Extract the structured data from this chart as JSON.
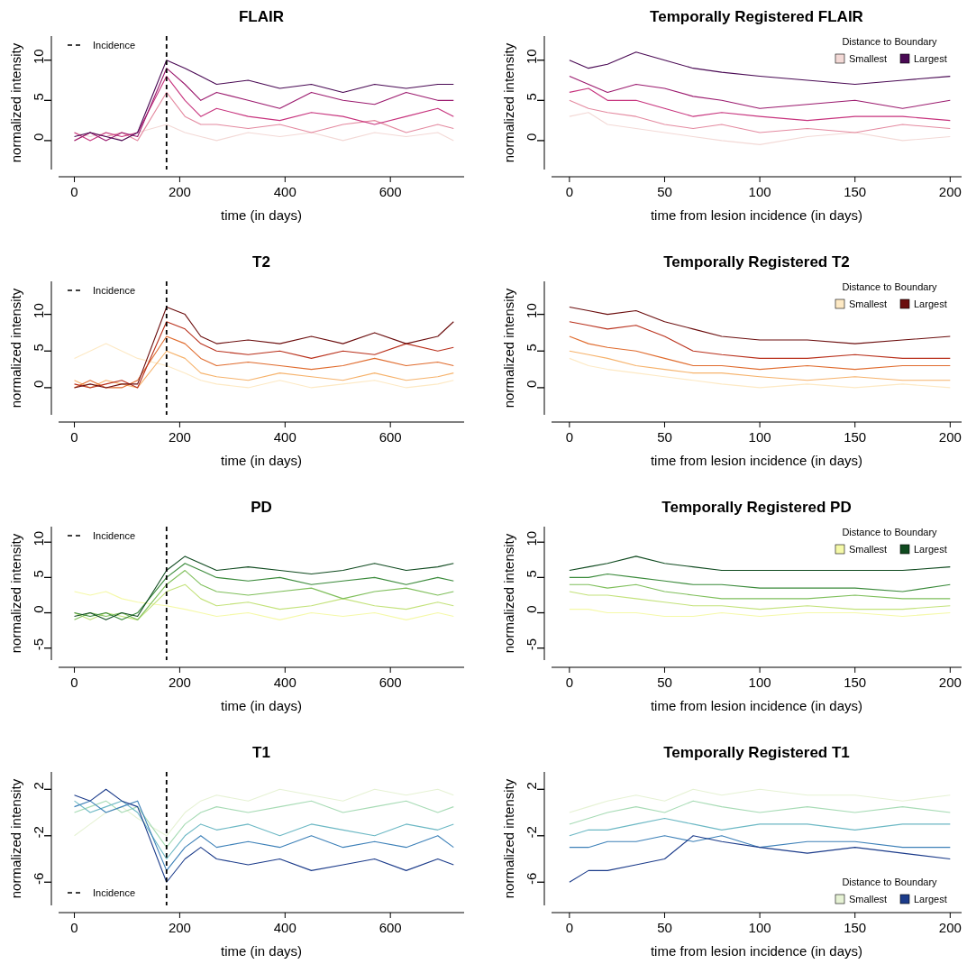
{
  "chart_data": [
    {
      "type": "line",
      "title": "FLAIR",
      "xlabel": "time (in days)",
      "ylabel": "normalized intensity",
      "x": [
        0,
        30,
        60,
        90,
        120,
        175,
        210,
        240,
        270,
        330,
        390,
        450,
        510,
        570,
        630,
        690,
        720
      ],
      "xlim": [
        -30,
        740
      ],
      "xticks": [
        0,
        200,
        400,
        600
      ],
      "ylim": [
        -3.6,
        13
      ],
      "yticks": [
        0,
        5,
        10
      ],
      "legend": "top left",
      "ref_lines": [
        {
          "axis": "x",
          "value": 175,
          "label": "Incidence",
          "line_style": "dashed",
          "color": "#000000"
        }
      ],
      "series": [
        {
          "color": "#f3d9d6",
          "values": [
            1,
            0.5,
            1,
            0,
            1,
            2,
            1,
            0.5,
            0,
            1,
            0.5,
            1,
            0,
            1,
            0.5,
            1,
            0
          ]
        },
        {
          "color": "#e48aa0",
          "values": [
            0,
            1,
            0.5,
            1,
            0,
            6,
            3,
            2,
            2,
            1.5,
            2,
            1,
            2,
            2.5,
            1,
            2,
            1.5
          ]
        },
        {
          "color": "#c7337d",
          "values": [
            1,
            0,
            1,
            0.5,
            1,
            8,
            5,
            3,
            4,
            3,
            2.5,
            3.5,
            3,
            2,
            3,
            4,
            3
          ]
        },
        {
          "color": "#9b1a6e",
          "values": [
            0,
            1,
            0,
            1,
            0.5,
            9,
            7,
            5,
            6,
            5,
            4,
            6,
            5,
            4.5,
            6,
            5,
            5
          ]
        },
        {
          "color": "#4a0a54",
          "values": [
            0.5,
            1,
            0.5,
            0,
            1,
            10,
            9,
            8,
            7,
            7.5,
            6.5,
            7,
            6,
            7,
            6.5,
            7,
            7
          ]
        }
      ]
    },
    {
      "type": "line",
      "title": "Temporally Registered FLAIR",
      "xlabel": "time from lesion incidence (in days)",
      "ylabel": "normalized intensity",
      "x": [
        0,
        10,
        20,
        35,
        50,
        65,
        80,
        100,
        125,
        150,
        175,
        200
      ],
      "xlim": [
        -9.4,
        206
      ],
      "xticks": [
        0,
        50,
        100,
        150,
        200
      ],
      "ylim": [
        -3.6,
        13
      ],
      "yticks": [
        0,
        5,
        10
      ],
      "legend": "top right",
      "legend_title": "Distance to Boundary",
      "series": [
        {
          "name": "Smallest",
          "color": "#f3d9d6",
          "values": [
            3,
            3.5,
            2,
            1.5,
            1,
            0.5,
            0,
            -0.5,
            0.5,
            1,
            0,
            0.5
          ]
        },
        {
          "color": "#e48aa0",
          "values": [
            5,
            4,
            3.5,
            3,
            2,
            1.5,
            2,
            1,
            1.5,
            1,
            2,
            1.5
          ]
        },
        {
          "color": "#c7337d",
          "values": [
            6,
            6.5,
            5,
            5,
            4,
            3,
            3.5,
            3,
            2.5,
            3,
            3,
            2.5
          ]
        },
        {
          "color": "#9b1a6e",
          "values": [
            8,
            7,
            6,
            7,
            6.5,
            5.5,
            5,
            4,
            4.5,
            5,
            4,
            5
          ]
        },
        {
          "name": "Largest",
          "color": "#4a0a54",
          "values": [
            10,
            9,
            9.5,
            11,
            10,
            9,
            8.5,
            8,
            7.5,
            7,
            7.5,
            8
          ]
        }
      ]
    },
    {
      "type": "line",
      "title": "T2",
      "xlabel": "time (in days)",
      "ylabel": "normalized intensity",
      "x": [
        0,
        30,
        60,
        90,
        120,
        175,
        210,
        240,
        270,
        330,
        390,
        450,
        510,
        570,
        630,
        690,
        720
      ],
      "xlim": [
        -30,
        740
      ],
      "xticks": [
        0,
        200,
        400,
        600
      ],
      "ylim": [
        -3.7,
        14.5
      ],
      "yticks": [
        0,
        5,
        10
      ],
      "legend": "top left",
      "ref_lines": [
        {
          "axis": "x",
          "value": 175,
          "label": "Incidence",
          "line_style": "dashed",
          "color": "#000000"
        }
      ],
      "series": [
        {
          "color": "#fde9c4",
          "values": [
            4,
            5,
            6,
            5,
            4,
            3,
            2,
            1,
            0.5,
            0,
            1,
            0,
            0.5,
            1,
            0,
            0.5,
            1
          ]
        },
        {
          "color": "#f6b26b",
          "values": [
            1,
            0,
            1,
            0.5,
            0,
            5,
            4,
            2,
            1.5,
            1,
            2,
            1.5,
            1,
            2,
            1,
            1.5,
            2
          ]
        },
        {
          "color": "#e06b2d",
          "values": [
            0,
            1,
            0,
            0,
            1,
            7,
            6,
            4,
            3,
            3.5,
            3,
            2.5,
            3,
            4,
            3,
            3.5,
            3
          ]
        },
        {
          "color": "#b9301b",
          "values": [
            0.5,
            0,
            0.5,
            1,
            0,
            9,
            8,
            6,
            5,
            4.5,
            5,
            4,
            5,
            4.5,
            6,
            5,
            5.5
          ]
        },
        {
          "color": "#6b0d0d",
          "values": [
            0,
            0.5,
            0,
            0.5,
            0.5,
            11,
            10,
            7,
            6,
            6.5,
            6,
            7,
            6,
            7.5,
            6,
            7,
            9
          ]
        }
      ]
    },
    {
      "type": "line",
      "title": "Temporally Registered T2",
      "xlabel": "time from lesion incidence (in days)",
      "ylabel": "normalized intensity",
      "x": [
        0,
        10,
        20,
        35,
        50,
        65,
        80,
        100,
        125,
        150,
        175,
        200
      ],
      "xlim": [
        -9.4,
        206
      ],
      "xticks": [
        0,
        50,
        100,
        150,
        200
      ],
      "ylim": [
        -3.7,
        14.5
      ],
      "yticks": [
        0,
        5,
        10
      ],
      "legend": "top right",
      "legend_title": "Distance to Boundary",
      "series": [
        {
          "name": "Smallest",
          "color": "#fde9c4",
          "values": [
            4,
            3,
            2.5,
            2,
            1.5,
            1,
            0.5,
            0,
            0.5,
            0,
            0.5,
            0
          ]
        },
        {
          "color": "#f6b26b",
          "values": [
            5,
            4.5,
            4,
            3,
            2.5,
            2,
            2,
            1.5,
            1,
            1.5,
            1,
            1
          ]
        },
        {
          "color": "#e06b2d",
          "values": [
            7,
            6,
            5.5,
            5,
            4,
            3,
            3,
            2.5,
            3,
            2.5,
            3,
            3
          ]
        },
        {
          "color": "#b9301b",
          "values": [
            9,
            8.5,
            8,
            8.5,
            7,
            5,
            4.5,
            4,
            4,
            4.5,
            4,
            4
          ]
        },
        {
          "name": "Largest",
          "color": "#6b0d0d",
          "values": [
            11,
            10.5,
            10,
            10.5,
            9,
            8,
            7,
            6.5,
            6.5,
            6,
            6.5,
            7
          ]
        }
      ]
    },
    {
      "type": "line",
      "title": "PD",
      "xlabel": "time (in days)",
      "ylabel": "normalized intensity",
      "x": [
        0,
        30,
        60,
        90,
        120,
        175,
        210,
        240,
        270,
        330,
        390,
        450,
        510,
        570,
        630,
        690,
        720
      ],
      "xlim": [
        -30,
        740
      ],
      "xticks": [
        0,
        200,
        400,
        600
      ],
      "ylim": [
        -6.7,
        12.2
      ],
      "yticks": [
        -5,
        0,
        5,
        10
      ],
      "legend": "top left",
      "ref_lines": [
        {
          "axis": "x",
          "value": 175,
          "label": "Incidence",
          "line_style": "dashed",
          "color": "#000000"
        }
      ],
      "series": [
        {
          "color": "#f5f9a8",
          "values": [
            3,
            2.5,
            3,
            2,
            1.5,
            1,
            0.5,
            0,
            -0.5,
            0,
            -1,
            0,
            -0.5,
            0,
            -1,
            0,
            -0.5
          ]
        },
        {
          "color": "#c3e27a",
          "values": [
            0,
            -1,
            0,
            -0.5,
            -1,
            3,
            4,
            2,
            1,
            1.5,
            0.5,
            1,
            2,
            1,
            0.5,
            1.5,
            1
          ]
        },
        {
          "color": "#7fbf5b",
          "values": [
            -1,
            0,
            -0.5,
            0,
            -1,
            4,
            6,
            4,
            3,
            2.5,
            3,
            3.5,
            2,
            3,
            3.5,
            2.5,
            3
          ]
        },
        {
          "color": "#3a8a3a",
          "values": [
            0,
            -0.5,
            0,
            -1,
            0,
            5,
            7,
            6,
            5,
            4.5,
            5,
            4,
            4.5,
            5,
            4,
            5,
            4.5
          ]
        },
        {
          "color": "#0f4a1f",
          "values": [
            -0.5,
            0,
            -1,
            0,
            -0.5,
            6,
            8,
            7,
            6,
            6.5,
            6,
            5.5,
            6,
            7,
            6,
            6.5,
            7
          ]
        }
      ]
    },
    {
      "type": "line",
      "title": "Temporally Registered PD",
      "xlabel": "time from lesion incidence (in days)",
      "ylabel": "normalized intensity",
      "x": [
        0,
        10,
        20,
        35,
        50,
        65,
        80,
        100,
        125,
        150,
        175,
        200
      ],
      "xlim": [
        -9.4,
        206
      ],
      "xticks": [
        0,
        50,
        100,
        150,
        200
      ],
      "ylim": [
        -6.7,
        12.2
      ],
      "yticks": [
        -5,
        0,
        5,
        10
      ],
      "legend": "top right",
      "legend_title": "Distance to Boundary",
      "series": [
        {
          "name": "Smallest",
          "color": "#f5f9a8",
          "values": [
            0.5,
            0.5,
            0,
            0,
            -0.5,
            -0.5,
            0,
            -0.5,
            0,
            0,
            -0.5,
            0
          ]
        },
        {
          "color": "#c3e27a",
          "values": [
            3,
            2.5,
            2.5,
            2,
            1.5,
            1,
            1,
            0.5,
            1,
            0.5,
            0.5,
            1
          ]
        },
        {
          "color": "#7fbf5b",
          "values": [
            4,
            4,
            3.5,
            4,
            3,
            2.5,
            2,
            2,
            2,
            2.5,
            2,
            2
          ]
        },
        {
          "color": "#3a8a3a",
          "values": [
            5,
            5,
            5.5,
            5,
            4.5,
            4,
            4,
            3.5,
            3.5,
            3.5,
            3,
            4
          ]
        },
        {
          "name": "Largest",
          "color": "#0f4a1f",
          "values": [
            6,
            6.5,
            7,
            8,
            7,
            6.5,
            6,
            6,
            6,
            6,
            6,
            6.5
          ]
        }
      ]
    },
    {
      "type": "line",
      "title": "T1",
      "xlabel": "time (in days)",
      "ylabel": "normalized intensity",
      "x": [
        0,
        30,
        60,
        90,
        120,
        175,
        210,
        240,
        270,
        330,
        390,
        450,
        510,
        570,
        630,
        690,
        720
      ],
      "xlim": [
        -30,
        740
      ],
      "xticks": [
        0,
        200,
        400,
        600
      ],
      "ylim": [
        -8,
        3.5
      ],
      "yticks": [
        -6,
        -2,
        2
      ],
      "legend": "bottom left",
      "ref_lines": [
        {
          "axis": "x",
          "value": 175,
          "label": "Incidence",
          "line_style": "dashed",
          "color": "#000000"
        }
      ],
      "series": [
        {
          "color": "#e6f2d4",
          "values": [
            -2,
            -1,
            0,
            0.5,
            -0.5,
            -2,
            0,
            1,
            1.5,
            1,
            2,
            1.5,
            1,
            2,
            1.5,
            2,
            1.5
          ]
        },
        {
          "color": "#a7dbb5",
          "values": [
            0,
            0.5,
            1,
            0,
            0.5,
            -3,
            -1,
            0,
            0.5,
            0,
            0.5,
            1,
            0,
            0.5,
            1,
            0,
            0.5
          ]
        },
        {
          "color": "#6cb8c4",
          "values": [
            1,
            0,
            0.5,
            1,
            0,
            -4,
            -2,
            -1,
            -1.5,
            -1,
            -2,
            -1,
            -1.5,
            -2,
            -1,
            -1.5,
            -1
          ]
        },
        {
          "color": "#3d80b8",
          "values": [
            0.5,
            1,
            0,
            0.5,
            1,
            -5,
            -3,
            -2,
            -3,
            -2.5,
            -3,
            -2,
            -3,
            -2.5,
            -3,
            -2,
            -3
          ]
        },
        {
          "color": "#1b3b8a",
          "values": [
            1.5,
            1,
            2,
            1,
            0.5,
            -6,
            -4,
            -3,
            -4,
            -4.5,
            -4,
            -5,
            -4.5,
            -4,
            -5,
            -4,
            -4.5
          ]
        }
      ]
    },
    {
      "type": "line",
      "title": "Temporally Registered T1",
      "xlabel": "time from lesion incidence (in days)",
      "ylabel": "normalized intensity",
      "x": [
        0,
        10,
        20,
        35,
        50,
        65,
        80,
        100,
        125,
        150,
        175,
        200
      ],
      "xlim": [
        -9.4,
        206
      ],
      "xticks": [
        0,
        50,
        100,
        150,
        200
      ],
      "ylim": [
        -8,
        3.5
      ],
      "yticks": [
        -6,
        -2,
        2
      ],
      "legend": "bottom right",
      "legend_title": "Distance to Boundary",
      "series": [
        {
          "name": "Smallest",
          "color": "#e6f2d4",
          "values": [
            0,
            0.5,
            1,
            1.5,
            1,
            2,
            1.5,
            2,
            1.5,
            1.5,
            1,
            1.5
          ]
        },
        {
          "color": "#a7dbb5",
          "values": [
            -1,
            -0.5,
            0,
            0.5,
            0,
            1,
            0.5,
            0,
            0.5,
            0,
            0.5,
            0
          ]
        },
        {
          "color": "#6cb8c4",
          "values": [
            -2,
            -1.5,
            -1.5,
            -1,
            -0.5,
            -1,
            -1.5,
            -1,
            -1,
            -1.5,
            -1,
            -1
          ]
        },
        {
          "color": "#3d80b8",
          "values": [
            -3,
            -3,
            -2.5,
            -2.5,
            -2,
            -2.5,
            -2,
            -3,
            -2.5,
            -2.5,
            -3,
            -3
          ]
        },
        {
          "name": "Largest",
          "color": "#1b3b8a",
          "values": [
            -6,
            -5,
            -5,
            -4.5,
            -4,
            -2,
            -2.5,
            -3,
            -3.5,
            -3,
            -3.5,
            -4
          ]
        }
      ]
    }
  ]
}
